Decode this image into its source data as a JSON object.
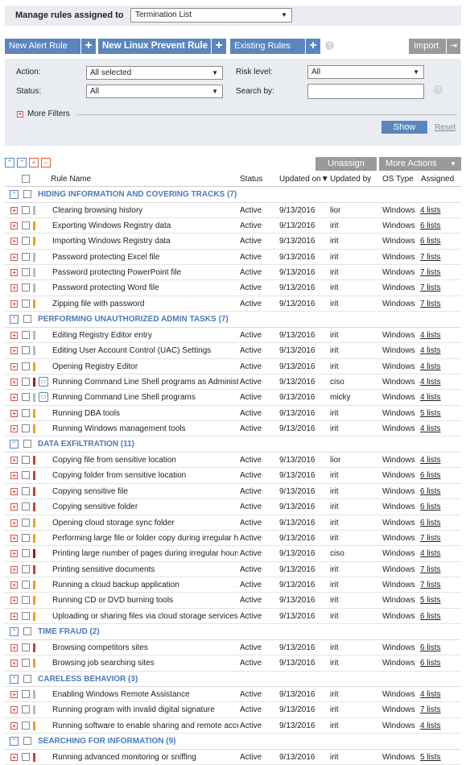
{
  "top": {
    "label": "Manage rules assigned to",
    "selected": "Termination List"
  },
  "buttons": {
    "new_alert": "New Alert Rule",
    "new_linux": "New Linux Prevent Rule",
    "existing": "Existing Rules",
    "import": "Import"
  },
  "filters": {
    "action_label": "Action:",
    "action_value": "All selected",
    "risk_label": "Risk level:",
    "risk_value": "All",
    "status_label": "Status:",
    "status_value": "All",
    "search_label": "Search by:",
    "search_value": "",
    "more_filters": "More Filters",
    "show": "Show",
    "reset": "Reset"
  },
  "actions": {
    "unassign": "Unassign",
    "more_actions": "More Actions"
  },
  "columns": {
    "name": "Rule Name",
    "status": "Status",
    "updated_on": "Updated on▼",
    "updated_by": "Updated by",
    "os": "OS Type",
    "assigned": "Assigned"
  },
  "colors": {
    "accent": "#5b86bd",
    "high": "#d43a3a",
    "medium": "#f0a11e",
    "low": "#b9b9b9",
    "critical": "#9c1d1d"
  },
  "groups": [
    {
      "title": "HIDING INFORMATION AND COVERING TRACKS (7)",
      "rules": [
        {
          "sev": "low",
          "name": "Clearing browsing history",
          "status": "Active",
          "updated": "9/13/2016",
          "by": "lior",
          "os": "Windows",
          "assigned": "4 lists"
        },
        {
          "sev": "medium",
          "name": "Exporting Windows Registry data",
          "status": "Active",
          "updated": "9/13/2016",
          "by": "irit",
          "os": "Windows",
          "assigned": "6 lists"
        },
        {
          "sev": "medium",
          "name": "Importing Windows Registry data",
          "status": "Active",
          "updated": "9/13/2016",
          "by": "irit",
          "os": "Windows",
          "assigned": "6 lists"
        },
        {
          "sev": "low",
          "name": "Password protecting Excel file",
          "status": "Active",
          "updated": "9/13/2016",
          "by": "irit",
          "os": "Windows",
          "assigned": "7 lists"
        },
        {
          "sev": "low",
          "name": "Password protecting PowerPoint file",
          "status": "Active",
          "updated": "9/13/2016",
          "by": "irit",
          "os": "Windows",
          "assigned": "7 lists"
        },
        {
          "sev": "low",
          "name": "Password protecting Word file",
          "status": "Active",
          "updated": "9/13/2016",
          "by": "irit",
          "os": "Windows",
          "assigned": "7 lists"
        },
        {
          "sev": "medium",
          "name": "Zipping file with password",
          "status": "Active",
          "updated": "9/13/2016",
          "by": "irit",
          "os": "Windows",
          "assigned": "7 lists"
        }
      ]
    },
    {
      "title": "PERFORMING UNAUTHORIZED ADMIN TASKS (7)",
      "rules": [
        {
          "sev": "low",
          "name": "Editing Registry Editor entry",
          "status": "Active",
          "updated": "9/13/2016",
          "by": "irit",
          "os": "Windows",
          "assigned": "4 lists"
        },
        {
          "sev": "low",
          "name": "Editing User Account Control (UAC) Settings",
          "status": "Active",
          "updated": "9/13/2016",
          "by": "irit",
          "os": "Windows",
          "assigned": "4 lists"
        },
        {
          "sev": "medium",
          "name": "Opening Registry Editor",
          "status": "Active",
          "updated": "9/13/2016",
          "by": "irit",
          "os": "Windows",
          "assigned": "4 lists"
        },
        {
          "sev": "critical",
          "name": "Running Command Line Shell programs as Administrator",
          "status": "Active",
          "updated": "9/13/2016",
          "by": "ciso",
          "os": "Windows",
          "assigned": "4 lists",
          "icon": true
        },
        {
          "sev": "low",
          "name": "Running Command Line Shell programs",
          "status": "Active",
          "updated": "9/13/2016",
          "by": "micky",
          "os": "Windows",
          "assigned": "4 lists",
          "icon": true
        },
        {
          "sev": "medium",
          "name": "Running DBA tools",
          "status": "Active",
          "updated": "9/13/2016",
          "by": "irit",
          "os": "Windows",
          "assigned": "5 lists"
        },
        {
          "sev": "medium",
          "name": "Running Windows management tools",
          "status": "Active",
          "updated": "9/13/2016",
          "by": "irit",
          "os": "Windows",
          "assigned": "4 lists"
        }
      ]
    },
    {
      "title": "DATA EXFILTRATION (11)",
      "rules": [
        {
          "sev": "high",
          "name": "Copying file from sensitive location",
          "status": "Active",
          "updated": "9/13/2016",
          "by": "lior",
          "os": "Windows",
          "assigned": "4 lists"
        },
        {
          "sev": "high",
          "name": "Copying folder from sensitive location",
          "status": "Active",
          "updated": "9/13/2016",
          "by": "irit",
          "os": "Windows",
          "assigned": "6 lists"
        },
        {
          "sev": "high",
          "name": "Copying sensitive file",
          "status": "Active",
          "updated": "9/13/2016",
          "by": "irit",
          "os": "Windows",
          "assigned": "6 lists"
        },
        {
          "sev": "high",
          "name": "Copying sensitive folder",
          "status": "Active",
          "updated": "9/13/2016",
          "by": "irit",
          "os": "Windows",
          "assigned": "6 lists"
        },
        {
          "sev": "medium",
          "name": "Opening cloud storage sync folder",
          "status": "Active",
          "updated": "9/13/2016",
          "by": "irit",
          "os": "Windows",
          "assigned": "6 lists"
        },
        {
          "sev": "medium",
          "name": "Performing large file or folder copy during irregular hours",
          "status": "Active",
          "updated": "9/13/2016",
          "by": "irit",
          "os": "Windows",
          "assigned": "7 lists"
        },
        {
          "sev": "critical",
          "name": "Printing large number of pages during irregular hours",
          "status": "Active",
          "updated": "9/13/2016",
          "by": "ciso",
          "os": "Windows",
          "assigned": "4 lists"
        },
        {
          "sev": "high",
          "name": "Printing sensitive documents",
          "status": "Active",
          "updated": "9/13/2016",
          "by": "irit",
          "os": "Windows",
          "assigned": "7 lists"
        },
        {
          "sev": "medium",
          "name": "Running a cloud backup application",
          "status": "Active",
          "updated": "9/13/2016",
          "by": "irit",
          "os": "Windows",
          "assigned": "7 lists"
        },
        {
          "sev": "medium",
          "name": "Running CD or DVD burning tools",
          "status": "Active",
          "updated": "9/13/2016",
          "by": "irit",
          "os": "Windows",
          "assigned": "5 lists"
        },
        {
          "sev": "medium",
          "name": "Uploading or sharing files via cloud storage services",
          "status": "Active",
          "updated": "9/13/2016",
          "by": "irit",
          "os": "Windows",
          "assigned": "6 lists"
        }
      ]
    },
    {
      "title": "TIME FRAUD (2)",
      "rules": [
        {
          "sev": "high",
          "name": "Browsing competitors sites",
          "status": "Active",
          "updated": "9/13/2016",
          "by": "irit",
          "os": "Windows",
          "assigned": "6 lists"
        },
        {
          "sev": "medium",
          "name": "Browsing job searching sites",
          "status": "Active",
          "updated": "9/13/2016",
          "by": "irit",
          "os": "Windows",
          "assigned": "6 lists"
        }
      ]
    },
    {
      "title": "CARELESS BEHAVIOR (3)",
      "rules": [
        {
          "sev": "low",
          "name": "Enabling Windows Remote Assistance",
          "status": "Active",
          "updated": "9/13/2016",
          "by": "irit",
          "os": "Windows",
          "assigned": "4 lists"
        },
        {
          "sev": "low",
          "name": "Running program with invalid digital signature",
          "status": "Active",
          "updated": "9/13/2016",
          "by": "irit",
          "os": "Windows",
          "assigned": "7 lists"
        },
        {
          "sev": "medium",
          "name": "Running software to enable sharing and remote access",
          "status": "Active",
          "updated": "9/13/2016",
          "by": "irit",
          "os": "Windows",
          "assigned": "4 lists"
        }
      ]
    },
    {
      "title": "SEARCHING FOR INFORMATION (9)",
      "rules": [
        {
          "sev": "high",
          "name": "Running advanced monitoring or sniffing",
          "status": "Active",
          "updated": "9/13/2016",
          "by": "irit",
          "os": "Windows",
          "assigned": "5 lists"
        }
      ]
    }
  ]
}
